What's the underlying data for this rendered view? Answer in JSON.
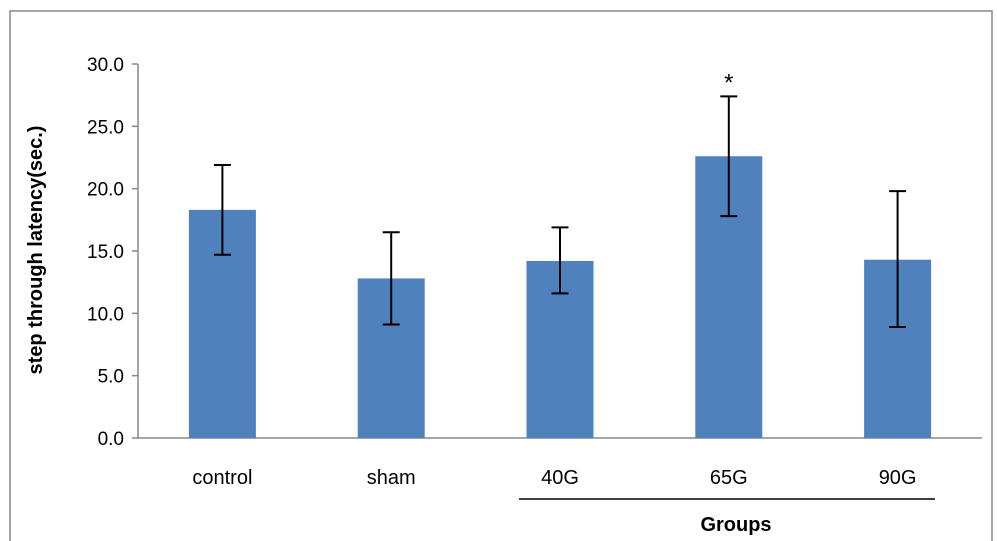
{
  "chart_data": {
    "type": "bar",
    "categories": [
      "control",
      "sham",
      "40G",
      "65G",
      "90G"
    ],
    "values": [
      18.3,
      12.8,
      14.2,
      22.6,
      14.3
    ],
    "error_low": [
      14.7,
      9.1,
      11.6,
      17.8,
      8.9
    ],
    "error_high": [
      21.9,
      16.5,
      16.9,
      27.4,
      19.8
    ],
    "annotations": [
      {
        "category": "65G",
        "text": "*"
      }
    ],
    "bracket": {
      "label": "Groups",
      "from_category": "40G",
      "to_category": "90G"
    },
    "title": "",
    "xlabel": "Groups",
    "ylabel": "step through latency(sec.)",
    "ylim": [
      0,
      30
    ],
    "yticks": [
      "0.0",
      "5.0",
      "10.0",
      "15.0",
      "20.0",
      "25.0",
      "30.0"
    ],
    "ytick_values": [
      0,
      5,
      10,
      15,
      20,
      25,
      30
    ],
    "grid": false,
    "legend": "none",
    "bar_color": "#4F81BD",
    "error_bar_color": "#000000",
    "axis_color": "#888888"
  }
}
